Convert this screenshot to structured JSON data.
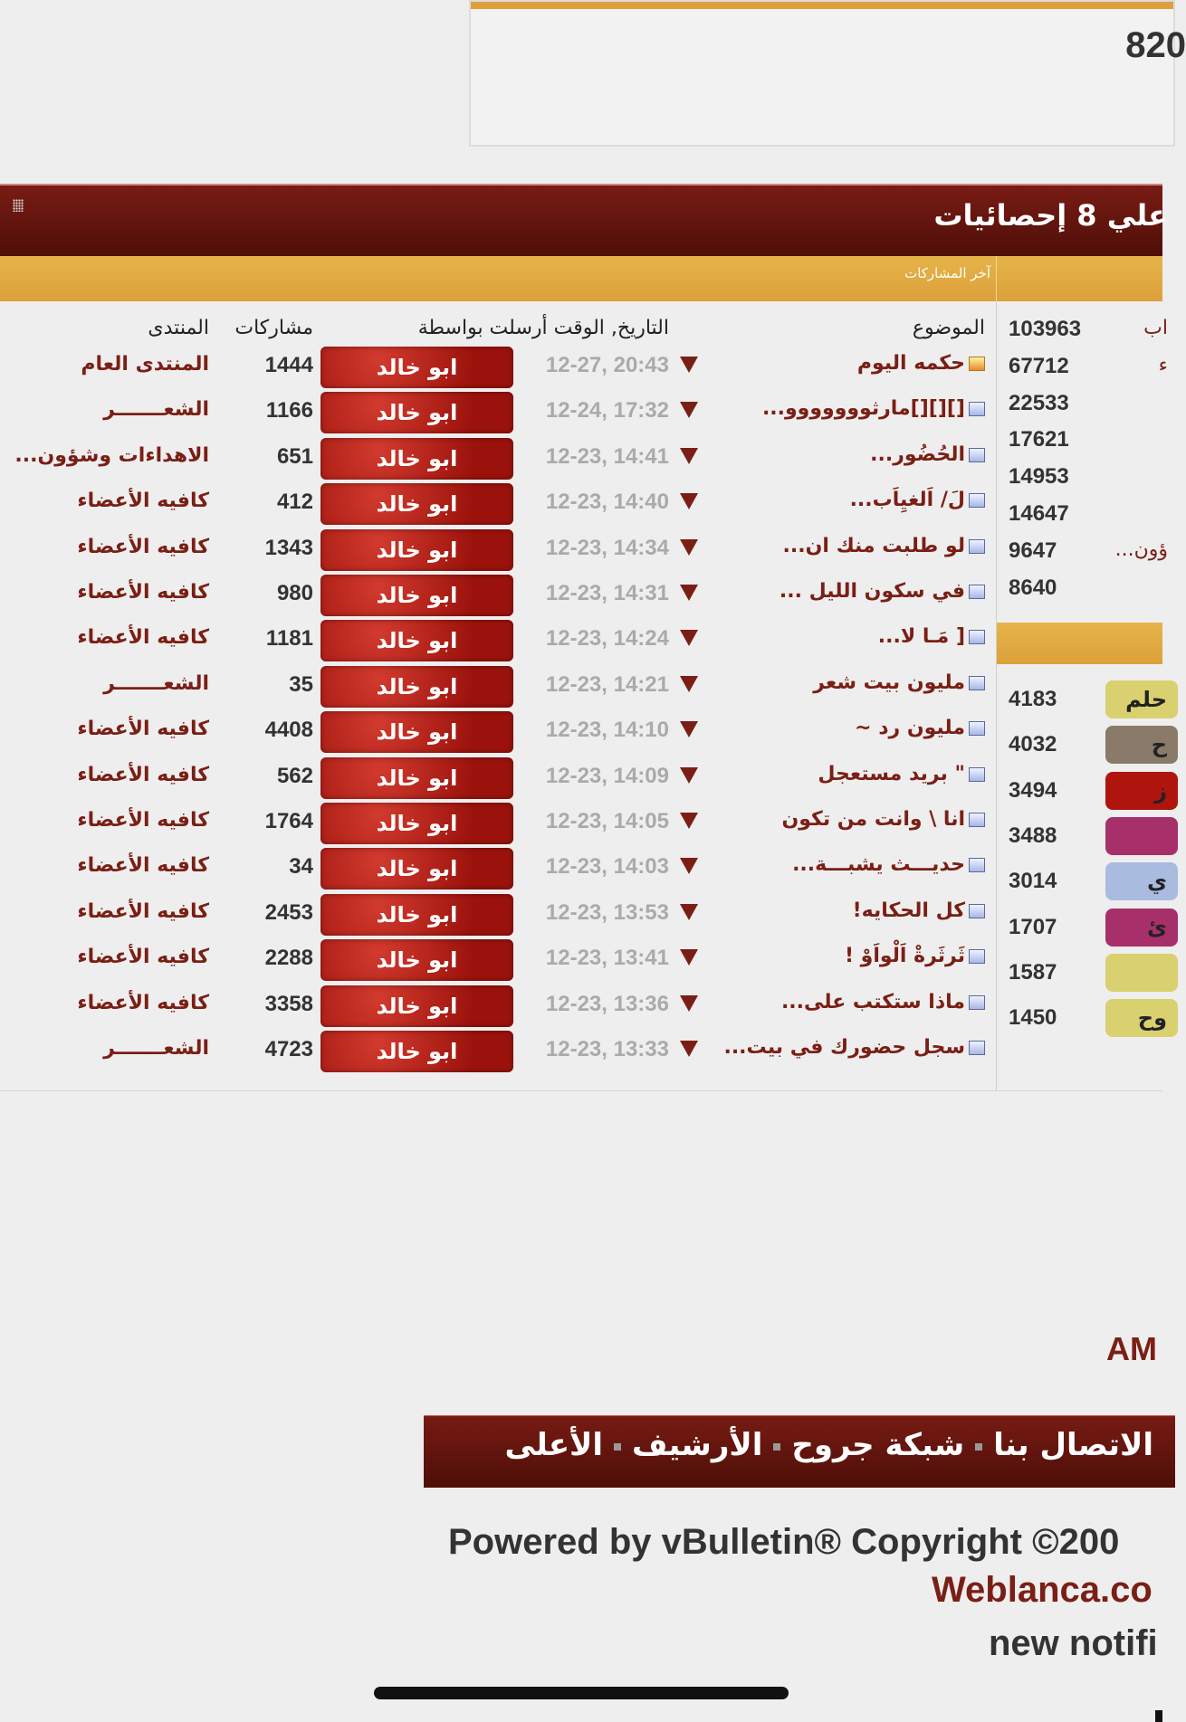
{
  "top_box": {
    "value": "820"
  },
  "stats_header": {
    "title": "علي 8 إحصائيات"
  },
  "latest_posts": {
    "label": "آخر المشاركات",
    "headers": {
      "topic": "الموضوع",
      "date_by": "التاريخ, الوقت أرسلت بواسطة",
      "posts": "مشاركات",
      "forum": "المنتدى"
    },
    "rows": [
      {
        "topic": "حكمه اليوم",
        "icon": "hot-thread-icon",
        "date": "12-27, 20:43",
        "user": "ابو خالد",
        "posts": "1444",
        "forum": "المنتدى العام"
      },
      {
        "topic": "[][][]مارثووووووو...",
        "icon": "thread-icon",
        "date": "12-24, 17:32",
        "user": "ابو خالد",
        "posts": "1166",
        "forum": "الشعـــــــر"
      },
      {
        "topic": "الحُضُور...",
        "icon": "thread-icon",
        "date": "12-23, 14:41",
        "user": "ابو خالد",
        "posts": "651",
        "forum": "الاهداءات وشؤون..."
      },
      {
        "topic": "لَ/ اَلغيِاَب...",
        "icon": "thread-icon",
        "date": "12-23, 14:40",
        "user": "ابو خالد",
        "posts": "412",
        "forum": "كافيه الأعضاء"
      },
      {
        "topic": "لو طلبت منك ان...",
        "icon": "thread-icon",
        "date": "12-23, 14:34",
        "user": "ابو خالد",
        "posts": "1343",
        "forum": "كافيه الأعضاء"
      },
      {
        "topic": "في سكون الليل ...",
        "icon": "thread-icon",
        "date": "12-23, 14:31",
        "user": "ابو خالد",
        "posts": "980",
        "forum": "كافيه الأعضاء"
      },
      {
        "topic": "[ مَـا لا...",
        "icon": "thread-icon",
        "date": "12-23, 14:24",
        "user": "ابو خالد",
        "posts": "1181",
        "forum": "كافيه الأعضاء"
      },
      {
        "topic": "مليون بيت شعر",
        "icon": "thread-icon",
        "date": "12-23, 14:21",
        "user": "ابو خالد",
        "posts": "35",
        "forum": "الشعـــــــر"
      },
      {
        "topic": "مليون رد ~",
        "icon": "thread-icon",
        "date": "12-23, 14:10",
        "user": "ابو خالد",
        "posts": "4408",
        "forum": "كافيه الأعضاء"
      },
      {
        "topic": "\" بريد مستعجل",
        "icon": "thread-icon",
        "date": "12-23, 14:09",
        "user": "ابو خالد",
        "posts": "562",
        "forum": "كافيه الأعضاء"
      },
      {
        "topic": "انا \\ وانت من تكون",
        "icon": "thread-icon",
        "date": "12-23, 14:05",
        "user": "ابو خالد",
        "posts": "1764",
        "forum": "كافيه الأعضاء"
      },
      {
        "topic": "حديـــث يشبـــة...",
        "icon": "thread-icon",
        "date": "12-23, 14:03",
        "user": "ابو خالد",
        "posts": "34",
        "forum": "كافيه الأعضاء"
      },
      {
        "topic": "كل الحكايه!",
        "icon": "thread-icon",
        "date": "12-23, 13:53",
        "user": "ابو خالد",
        "posts": "2453",
        "forum": "كافيه الأعضاء"
      },
      {
        "topic": "ثَرثَرةْ اَلْواَوْ !",
        "icon": "thread-icon",
        "date": "12-23, 13:41",
        "user": "ابو خالد",
        "posts": "2288",
        "forum": "كافيه الأعضاء"
      },
      {
        "topic": "ماذا ستكتب على...",
        "icon": "thread-icon",
        "date": "12-23, 13:36",
        "user": "ابو خالد",
        "posts": "3358",
        "forum": "كافيه الأعضاء"
      },
      {
        "topic": "سجل حضورك في بيت...",
        "icon": "thread-icon",
        "date": "12-23, 13:33",
        "user": "ابو خالد",
        "posts": "4723",
        "forum": "الشعـــــــر"
      }
    ]
  },
  "right_panel": {
    "top_list": [
      {
        "value": "103963",
        "text": "اب"
      },
      {
        "value": "67712",
        "text": "ء"
      },
      {
        "value": "22533",
        "text": ""
      },
      {
        "value": "17621",
        "text": ""
      },
      {
        "value": "14953",
        "text": ""
      },
      {
        "value": "14647",
        "text": ""
      },
      {
        "value": "9647",
        "text": "ؤون..."
      },
      {
        "value": "8640",
        "text": ""
      }
    ],
    "members": [
      {
        "value": "4183",
        "text": "حلم",
        "bg": "#d9d070"
      },
      {
        "value": "4032",
        "text": "ح",
        "bg": "#8a7a6a"
      },
      {
        "value": "3494",
        "text": "ز",
        "bg": "#b0140e"
      },
      {
        "value": "3488",
        "text": "",
        "bg": "#a8306a"
      },
      {
        "value": "3014",
        "text": "ي",
        "bg": "#aabbe0"
      },
      {
        "value": "1707",
        "text": "ئ",
        "bg": "#a8306a"
      },
      {
        "value": "1587",
        "text": "",
        "bg": "#d9d070"
      },
      {
        "value": "1450",
        "text": "وح",
        "bg": "#d9d070"
      }
    ]
  },
  "footer": {
    "time_suffix": "AM",
    "links": [
      "الاتصال بنا",
      "شبكة جروح",
      "الأرشيف",
      "الأعلى"
    ],
    "powered": "Powered by vBulletin® Copyright ©200",
    "weblanca": "Weblanca.co",
    "notif": "new notifi"
  },
  "colors": {
    "brand_red": "#7a1f15",
    "gold": "#dea03a",
    "header_dark": "#4e0f08"
  }
}
